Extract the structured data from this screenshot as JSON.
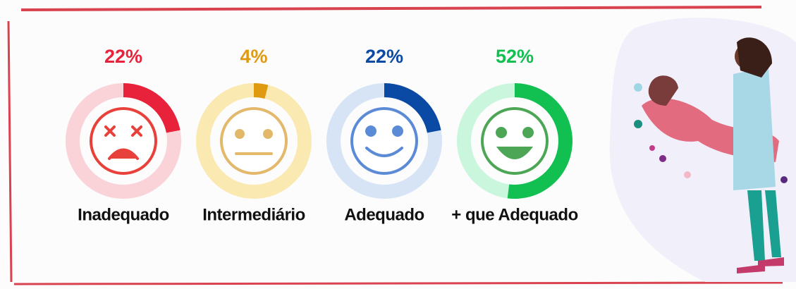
{
  "chart_data": {
    "type": "donut",
    "categories": [
      "Inadequado",
      "Intermediário",
      "Adequado",
      "+ que Adequado"
    ],
    "values": [
      22,
      4,
      22,
      52
    ],
    "value_labels": [
      "22%",
      "4%",
      "22%",
      "52%"
    ],
    "colors": [
      "#e8223a",
      "#e09a12",
      "#0a4aa5",
      "#12c052"
    ],
    "track_colors": [
      "#fad3d8",
      "#fbe9b2",
      "#d6e4f6",
      "#c9f6dd"
    ]
  }
}
